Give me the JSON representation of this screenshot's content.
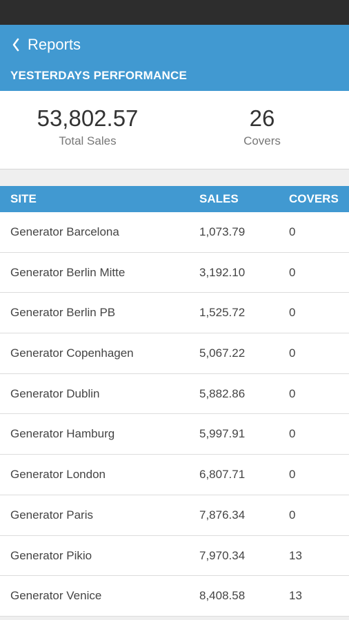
{
  "header": {
    "back_label": "Reports",
    "section_title": "YESTERDAYS PERFORMANCE"
  },
  "summary": {
    "total_sales_value": "53,802.57",
    "total_sales_label": "Total Sales",
    "covers_value": "26",
    "covers_label": "Covers"
  },
  "table": {
    "columns": [
      "SITE",
      "SALES",
      "COVERS"
    ],
    "rows": [
      {
        "site": "Generator Barcelona",
        "sales": "1,073.79",
        "covers": "0"
      },
      {
        "site": "Generator Berlin Mitte",
        "sales": "3,192.10",
        "covers": "0"
      },
      {
        "site": "Generator Berlin PB",
        "sales": "1,525.72",
        "covers": "0"
      },
      {
        "site": "Generator Copenhagen",
        "sales": "5,067.22",
        "covers": "0"
      },
      {
        "site": "Generator Dublin",
        "sales": "5,882.86",
        "covers": "0"
      },
      {
        "site": "Generator Hamburg",
        "sales": "5,997.91",
        "covers": "0"
      },
      {
        "site": "Generator London",
        "sales": "6,807.71",
        "covers": "0"
      },
      {
        "site": "Generator Paris",
        "sales": "7,876.34",
        "covers": "0"
      },
      {
        "site": "Generator Pikio",
        "sales": "7,970.34",
        "covers": "13"
      },
      {
        "site": "Generator Venice",
        "sales": "8,408.58",
        "covers": "13"
      }
    ]
  },
  "colors": {
    "accent": "#4199d1",
    "status_bar": "#2d2d2d"
  },
  "icons": {
    "back": "chevron-left-icon"
  }
}
